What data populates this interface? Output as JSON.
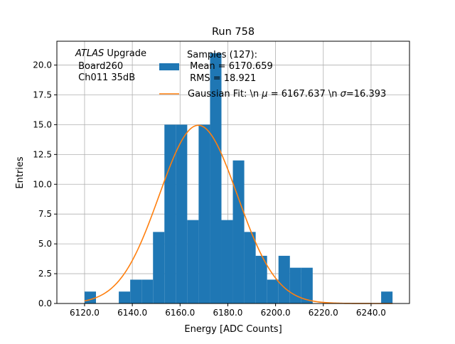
{
  "chart_data": {
    "type": "bar",
    "title": "Run 758",
    "xlabel": "Energy [ADC Counts]",
    "ylabel": "Entries",
    "xlim": [
      6108.4,
      6256.1
    ],
    "ylim": [
      0,
      22
    ],
    "grid": true,
    "legend_placement": "top-center",
    "xticks": [
      6120,
      6140,
      6160,
      6180,
      6200,
      6220,
      6240
    ],
    "xtick_labels": [
      "6120.0",
      "6140.0",
      "6160.0",
      "6180.0",
      "6200.0",
      "6220.0",
      "6240.0"
    ],
    "yticks": [
      0,
      2.5,
      5,
      7.5,
      10,
      12.5,
      15,
      17.5,
      20
    ],
    "ytick_labels": [
      "0.0",
      "2.5",
      "5.0",
      "7.5",
      "10.0",
      "12.5",
      "15.0",
      "17.5",
      "20.0"
    ],
    "histogram": {
      "bin_start": 6120,
      "bin_end": 6249,
      "counts": [
        1,
        0,
        0,
        1,
        2,
        2,
        6,
        15,
        15,
        7,
        15,
        21,
        7,
        12,
        6,
        4,
        2,
        4,
        3,
        3,
        0,
        0,
        0,
        0,
        0,
        0,
        1
      ],
      "color": "#1f77b4"
    },
    "fit": {
      "type": "gaussian",
      "mu": 6167.637,
      "sigma": 16.393,
      "peak": 14.95,
      "x_range": [
        6120,
        6249
      ],
      "color": "#ff7f0e"
    },
    "annotation": {
      "line1_italic": "ATLAS",
      "line1_rest": " Upgrade",
      "line2": " Board260",
      "line3": " Ch011 35dB"
    },
    "legend": {
      "hist_line1": "Samples (127):",
      "hist_line2": " Mean = 6170.659",
      "hist_line3": " RMS = 18.921",
      "fit_prefix": "Gaussian Fit: \\n ",
      "fit_mu_symbol": "μ",
      "fit_mu_text": " = 6167.637 \\n ",
      "fit_sigma_symbol": "σ",
      "fit_sigma_text": "=16.393"
    }
  }
}
